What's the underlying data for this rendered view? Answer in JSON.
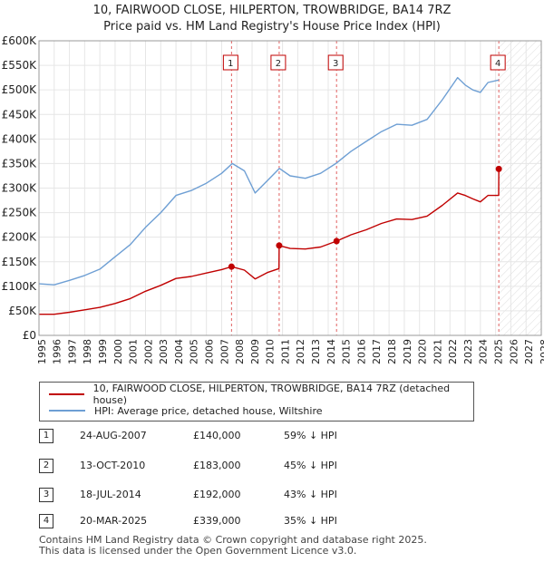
{
  "title": "10, FAIRWOOD CLOSE, HILPERTON, TROWBRIDGE, BA14 7RZ",
  "subtitle": "Price paid vs. HM Land Registry's House Price Index (HPI)",
  "legend": {
    "property": "10, FAIRWOOD CLOSE, HILPERTON, TROWBRIDGE, BA14 7RZ (detached house)",
    "hpi": "HPI: Average price, detached house, Wiltshire"
  },
  "colors": {
    "property": "#c00000",
    "hpi": "#6e9fd4",
    "marker_line": "#e06060",
    "future": "#cccccc"
  },
  "sales": [
    {
      "num": "1",
      "date": "24-AUG-2007",
      "price": "£140,000",
      "hpi": "59% ↓ HPI"
    },
    {
      "num": "2",
      "date": "13-OCT-2010",
      "price": "£183,000",
      "hpi": "45% ↓ HPI"
    },
    {
      "num": "3",
      "date": "18-JUL-2014",
      "price": "£192,000",
      "hpi": "43% ↓ HPI"
    },
    {
      "num": "4",
      "date": "20-MAR-2025",
      "price": "£339,000",
      "hpi": "35% ↓ HPI"
    }
  ],
  "footer": {
    "line1": "Contains HM Land Registry data © Crown copyright and database right 2025.",
    "line2": "This data is licensed under the Open Government Licence v3.0."
  },
  "chart_data": {
    "type": "line",
    "xlim": [
      1995,
      2028
    ],
    "ylim": [
      0,
      600000
    ],
    "x_ticks": [
      "1995",
      "1996",
      "1997",
      "1998",
      "1999",
      "2000",
      "2001",
      "2002",
      "2003",
      "2004",
      "2005",
      "2006",
      "2007",
      "2008",
      "2009",
      "2010",
      "2011",
      "2012",
      "2013",
      "2014",
      "2015",
      "2016",
      "2017",
      "2018",
      "2019",
      "2020",
      "2021",
      "2022",
      "2023",
      "2024",
      "2025",
      "2026",
      "2027",
      "2028"
    ],
    "y_ticks": [
      {
        "value": 0,
        "label": "£0"
      },
      {
        "value": 50000,
        "label": "£50K"
      },
      {
        "value": 100000,
        "label": "£100K"
      },
      {
        "value": 150000,
        "label": "£150K"
      },
      {
        "value": 200000,
        "label": "£200K"
      },
      {
        "value": 250000,
        "label": "£250K"
      },
      {
        "value": 300000,
        "label": "£300K"
      },
      {
        "value": 350000,
        "label": "£350K"
      },
      {
        "value": 400000,
        "label": "£400K"
      },
      {
        "value": 450000,
        "label": "£450K"
      },
      {
        "value": 500000,
        "label": "£500K"
      },
      {
        "value": 550000,
        "label": "£550K"
      },
      {
        "value": 600000,
        "label": "£600K"
      }
    ],
    "future_from": 2025.25,
    "series": [
      {
        "name": "HPI: Average price, detached house, Wiltshire",
        "points": [
          [
            1995,
            105000
          ],
          [
            1996,
            103000
          ],
          [
            1997,
            112000
          ],
          [
            1998,
            122000
          ],
          [
            1999,
            135000
          ],
          [
            2000,
            160000
          ],
          [
            2001,
            185000
          ],
          [
            2002,
            220000
          ],
          [
            2003,
            250000
          ],
          [
            2004,
            285000
          ],
          [
            2005,
            295000
          ],
          [
            2006,
            310000
          ],
          [
            2007,
            330000
          ],
          [
            2007.7,
            350000
          ],
          [
            2008.5,
            335000
          ],
          [
            2009.2,
            290000
          ],
          [
            2010,
            315000
          ],
          [
            2010.8,
            340000
          ],
          [
            2011.5,
            325000
          ],
          [
            2012.5,
            320000
          ],
          [
            2013.5,
            330000
          ],
          [
            2014.5,
            350000
          ],
          [
            2015.5,
            375000
          ],
          [
            2016.5,
            395000
          ],
          [
            2017.5,
            415000
          ],
          [
            2018.5,
            430000
          ],
          [
            2019.5,
            428000
          ],
          [
            2020.5,
            440000
          ],
          [
            2021.5,
            480000
          ],
          [
            2022.5,
            525000
          ],
          [
            2023,
            510000
          ],
          [
            2023.5,
            500000
          ],
          [
            2024,
            495000
          ],
          [
            2024.5,
            515000
          ],
          [
            2025.2,
            520000
          ]
        ]
      },
      {
        "name": "10, FAIRWOOD CLOSE, HILPERTON, TROWBRIDGE, BA14 7RZ (detached house)",
        "points": [
          [
            1995,
            43000
          ],
          [
            1996,
            43000
          ],
          [
            1997,
            47000
          ],
          [
            1998,
            52000
          ],
          [
            1999,
            57000
          ],
          [
            2000,
            65000
          ],
          [
            2001,
            75000
          ],
          [
            2002,
            90000
          ],
          [
            2003,
            102000
          ],
          [
            2004,
            116000
          ],
          [
            2005,
            120000
          ],
          [
            2006,
            127000
          ],
          [
            2007,
            134000
          ],
          [
            2007.65,
            140000
          ],
          [
            2008.5,
            133000
          ],
          [
            2009.2,
            115000
          ],
          [
            2010,
            128000
          ],
          [
            2010.77,
            136000
          ],
          [
            2010.78,
            183000
          ],
          [
            2011.5,
            177000
          ],
          [
            2012.5,
            176000
          ],
          [
            2013.5,
            180000
          ],
          [
            2014.55,
            192000
          ],
          [
            2015.5,
            205000
          ],
          [
            2016.5,
            215000
          ],
          [
            2017.5,
            228000
          ],
          [
            2018.5,
            237000
          ],
          [
            2019.5,
            236000
          ],
          [
            2020.5,
            243000
          ],
          [
            2021.5,
            265000
          ],
          [
            2022.5,
            290000
          ],
          [
            2023,
            285000
          ],
          [
            2023.5,
            278000
          ],
          [
            2024,
            272000
          ],
          [
            2024.5,
            285000
          ],
          [
            2025.2,
            285000
          ],
          [
            2025.21,
            339000
          ]
        ]
      }
    ],
    "sales_markers": [
      {
        "label": "1",
        "x": 2007.65,
        "y": 140000
      },
      {
        "label": "2",
        "x": 2010.78,
        "y": 183000
      },
      {
        "label": "3",
        "x": 2014.55,
        "y": 192000
      },
      {
        "label": "4",
        "x": 2025.21,
        "y": 339000
      }
    ]
  }
}
